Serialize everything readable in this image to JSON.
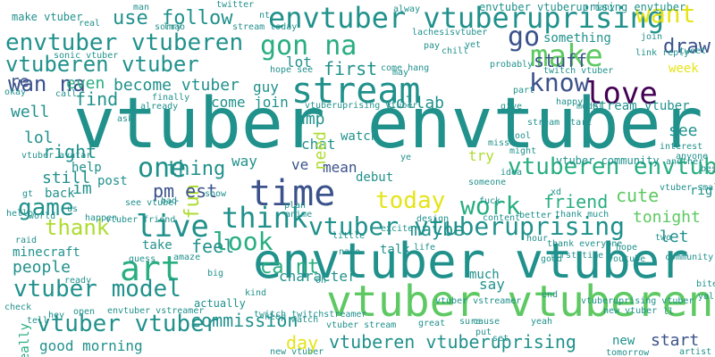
{
  "palette": {
    "dark_purple": "#440154",
    "purple": "#472d7b",
    "indigo": "#3b528b",
    "blue": "#2c728e",
    "teal": "#21918c",
    "green": "#28ae80",
    "light_green": "#5ec962",
    "lime": "#addc30",
    "yellow": "#e5e419"
  },
  "words": [
    {
      "text": "vtuber envtuber"
    },
    {
      "text": "envtuber vtuber"
    },
    {
      "text": "vtuber vtuberen"
    },
    {
      "text": "envtuber vtuberen"
    },
    {
      "text": "envtuber vtuberuprising"
    },
    {
      "text": "vtuberen vtuber"
    },
    {
      "text": "stream"
    },
    {
      "text": "time"
    },
    {
      "text": "gon na"
    },
    {
      "text": "wan na"
    },
    {
      "text": "live"
    },
    {
      "text": "think"
    },
    {
      "text": "love"
    },
    {
      "text": "vtuber vtuberuprising"
    },
    {
      "text": "vtuberen envtuber"
    },
    {
      "text": "make"
    },
    {
      "text": "go"
    },
    {
      "text": "want"
    },
    {
      "text": "know"
    },
    {
      "text": "one"
    },
    {
      "text": "thing"
    },
    {
      "text": "art"
    },
    {
      "text": "look"
    },
    {
      "text": "work"
    },
    {
      "text": "today"
    },
    {
      "text": "game"
    },
    {
      "text": "thank"
    },
    {
      "text": "vtuber model"
    },
    {
      "text": "vtuber vtuber"
    },
    {
      "text": "draw"
    },
    {
      "text": "stuff"
    },
    {
      "text": "right"
    },
    {
      "text": "re"
    },
    {
      "text": "even"
    },
    {
      "text": "become vtuber"
    },
    {
      "text": "first"
    },
    {
      "text": "collab"
    },
    {
      "text": "well"
    },
    {
      "text": "lol"
    },
    {
      "text": "fun"
    },
    {
      "text": "pm est"
    },
    {
      "text": "still"
    },
    {
      "text": "friend"
    },
    {
      "text": "cute"
    },
    {
      "text": "maybe"
    },
    {
      "text": "ca nt"
    },
    {
      "text": "people"
    },
    {
      "text": "im"
    },
    {
      "text": "feel"
    },
    {
      "text": "really"
    },
    {
      "text": "commission"
    },
    {
      "text": "good morning"
    },
    {
      "text": "vtuberen vtuberuprising"
    },
    {
      "text": "start"
    },
    {
      "text": "day"
    },
    {
      "text": "new"
    },
    {
      "text": "character"
    },
    {
      "text": "use"
    },
    {
      "text": "follow"
    },
    {
      "text": "find"
    },
    {
      "text": "lot"
    },
    {
      "text": "amp"
    },
    {
      "text": "week"
    },
    {
      "text": "see"
    },
    {
      "text": "let"
    },
    {
      "text": "tonight"
    },
    {
      "text": "chat"
    },
    {
      "text": "ve"
    },
    {
      "text": "mean"
    },
    {
      "text": "need"
    },
    {
      "text": "watch"
    },
    {
      "text": "post"
    },
    {
      "text": "help"
    },
    {
      "text": "back"
    },
    {
      "text": "way"
    },
    {
      "text": "guy"
    },
    {
      "text": "come join"
    },
    {
      "text": "try"
    },
    {
      "text": "debut"
    },
    {
      "text": "minecraft"
    },
    {
      "text": "say"
    },
    {
      "text": "much"
    },
    {
      "text": "talk"
    },
    {
      "text": "take"
    },
    {
      "text": "something"
    },
    {
      "text": "stream vtuber"
    },
    {
      "text": "vtuber community"
    },
    {
      "text": "actually"
    },
    {
      "text": "envtuber vtuberuprising envtuber"
    },
    {
      "text": "twitter"
    },
    {
      "text": "make vtuber"
    },
    {
      "text": "sorry"
    },
    {
      "text": "lmao"
    },
    {
      "text": "stream today"
    },
    {
      "text": "lachesisvtuber"
    },
    {
      "text": "link reply"
    },
    {
      "text": "join"
    },
    {
      "text": "tweet"
    },
    {
      "text": "sonic vtuber"
    },
    {
      "text": "hope see"
    },
    {
      "text": "come hang"
    },
    {
      "text": "probably"
    },
    {
      "text": "twitch vtuber"
    },
    {
      "text": "okay"
    },
    {
      "text": "call"
    },
    {
      "text": "finally"
    },
    {
      "text": "already"
    },
    {
      "text": "vtuberuprising vtuber"
    },
    {
      "text": "give"
    },
    {
      "text": "happy"
    },
    {
      "text": "model"
    },
    {
      "text": "part"
    },
    {
      "text": "interest"
    },
    {
      "text": "anyone"
    },
    {
      "text": "best"
    },
    {
      "text": "another"
    },
    {
      "text": "anime"
    },
    {
      "text": "plan"
    },
    {
      "text": "design"
    },
    {
      "text": "content"
    },
    {
      "text": "better"
    },
    {
      "text": "thank much"
    },
    {
      "text": "hour"
    },
    {
      "text": "little"
    },
    {
      "text": "life"
    },
    {
      "text": "name"
    },
    {
      "text": "hope"
    },
    {
      "text": "thank everyone"
    },
    {
      "text": "first time"
    },
    {
      "text": "community"
    },
    {
      "text": "youtube"
    },
    {
      "text": "good"
    },
    {
      "text": "see vtuber"
    },
    {
      "text": "vtuber friend"
    },
    {
      "text": "big"
    },
    {
      "text": "guess"
    },
    {
      "text": "amaze"
    },
    {
      "text": "ready"
    },
    {
      "text": "kind"
    },
    {
      "text": "oh"
    },
    {
      "text": "envtuber vstreamer"
    },
    {
      "text": "new vtuber"
    },
    {
      "text": "twitch twitchstreamer"
    },
    {
      "text": "keep"
    },
    {
      "text": "watch"
    },
    {
      "text": "vtuber stream"
    },
    {
      "text": "great"
    },
    {
      "text": "end"
    },
    {
      "text": "vtuber vstreamer"
    },
    {
      "text": "vtuberuprising vtuber"
    },
    {
      "text": "tomorrow"
    },
    {
      "text": "artist"
    },
    {
      "text": "bite"
    },
    {
      "text": "yall"
    },
    {
      "text": "hey"
    },
    {
      "text": "open"
    },
    {
      "text": "tell"
    },
    {
      "text": "us"
    },
    {
      "text": "happen"
    },
    {
      "text": "check"
    },
    {
      "text": "gt"
    },
    {
      "text": "hello"
    },
    {
      "text": "raid"
    },
    {
      "text": "world"
    },
    {
      "text": "ask"
    },
    {
      "text": "show"
    },
    {
      "text": "xd"
    },
    {
      "text": "fuck"
    },
    {
      "text": "excite"
    },
    {
      "text": "cool"
    },
    {
      "text": "miss"
    },
    {
      "text": "idea"
    },
    {
      "text": "might"
    },
    {
      "text": "man"
    },
    {
      "text": "nt"
    },
    {
      "text": "many"
    },
    {
      "text": "alway"
    },
    {
      "text": "real"
    },
    {
      "text": "yet"
    },
    {
      "text": "pay"
    },
    {
      "text": "may"
    },
    {
      "text": "chill"
    },
    {
      "text": "someone"
    },
    {
      "text": "vtuber smallstreamer"
    },
    {
      "text": "vtuber avatar"
    },
    {
      "text": "stream start"
    },
    {
      "text": "cause"
    },
    {
      "text": "put"
    },
    {
      "text": "set"
    },
    {
      "text": "sure"
    },
    {
      "text": "yeah"
    },
    {
      "text": "ye"
    },
    {
      "text": "rig"
    },
    {
      "text": "two"
    },
    {
      "text": "ll"
    },
    {
      "text": "bad"
    },
    {
      "text": "new vtuber"
    },
    {
      "text": "ok"
    },
    {
      "text": "watch vtuber stream"
    }
  ]
}
